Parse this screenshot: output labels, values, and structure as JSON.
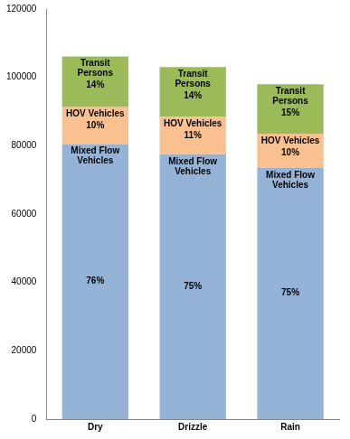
{
  "chart_data": {
    "type": "bar",
    "stacked": true,
    "grid": false,
    "categories": [
      "Dry",
      "Drizzle",
      "Rain"
    ],
    "series": [
      {
        "name": "Mixed Flow Vehicles",
        "color": "#95b3d7",
        "values": [
          80500,
          77500,
          73500
        ],
        "percent_labels": [
          "76%",
          "75%",
          "75%"
        ]
      },
      {
        "name": "HOV Vehicles",
        "color": "#fac090",
        "values": [
          10800,
          11000,
          10000
        ],
        "percent_labels": [
          "10%",
          "11%",
          "10%"
        ]
      },
      {
        "name": "Transit Persons",
        "color": "#9bbb59",
        "values": [
          14800,
          14500,
          14500
        ],
        "percent_labels": [
          "14%",
          "14%",
          "15%"
        ]
      }
    ],
    "ylim": [
      0,
      120000
    ],
    "yticks": [
      0,
      20000,
      40000,
      60000,
      80000,
      100000,
      120000
    ]
  }
}
